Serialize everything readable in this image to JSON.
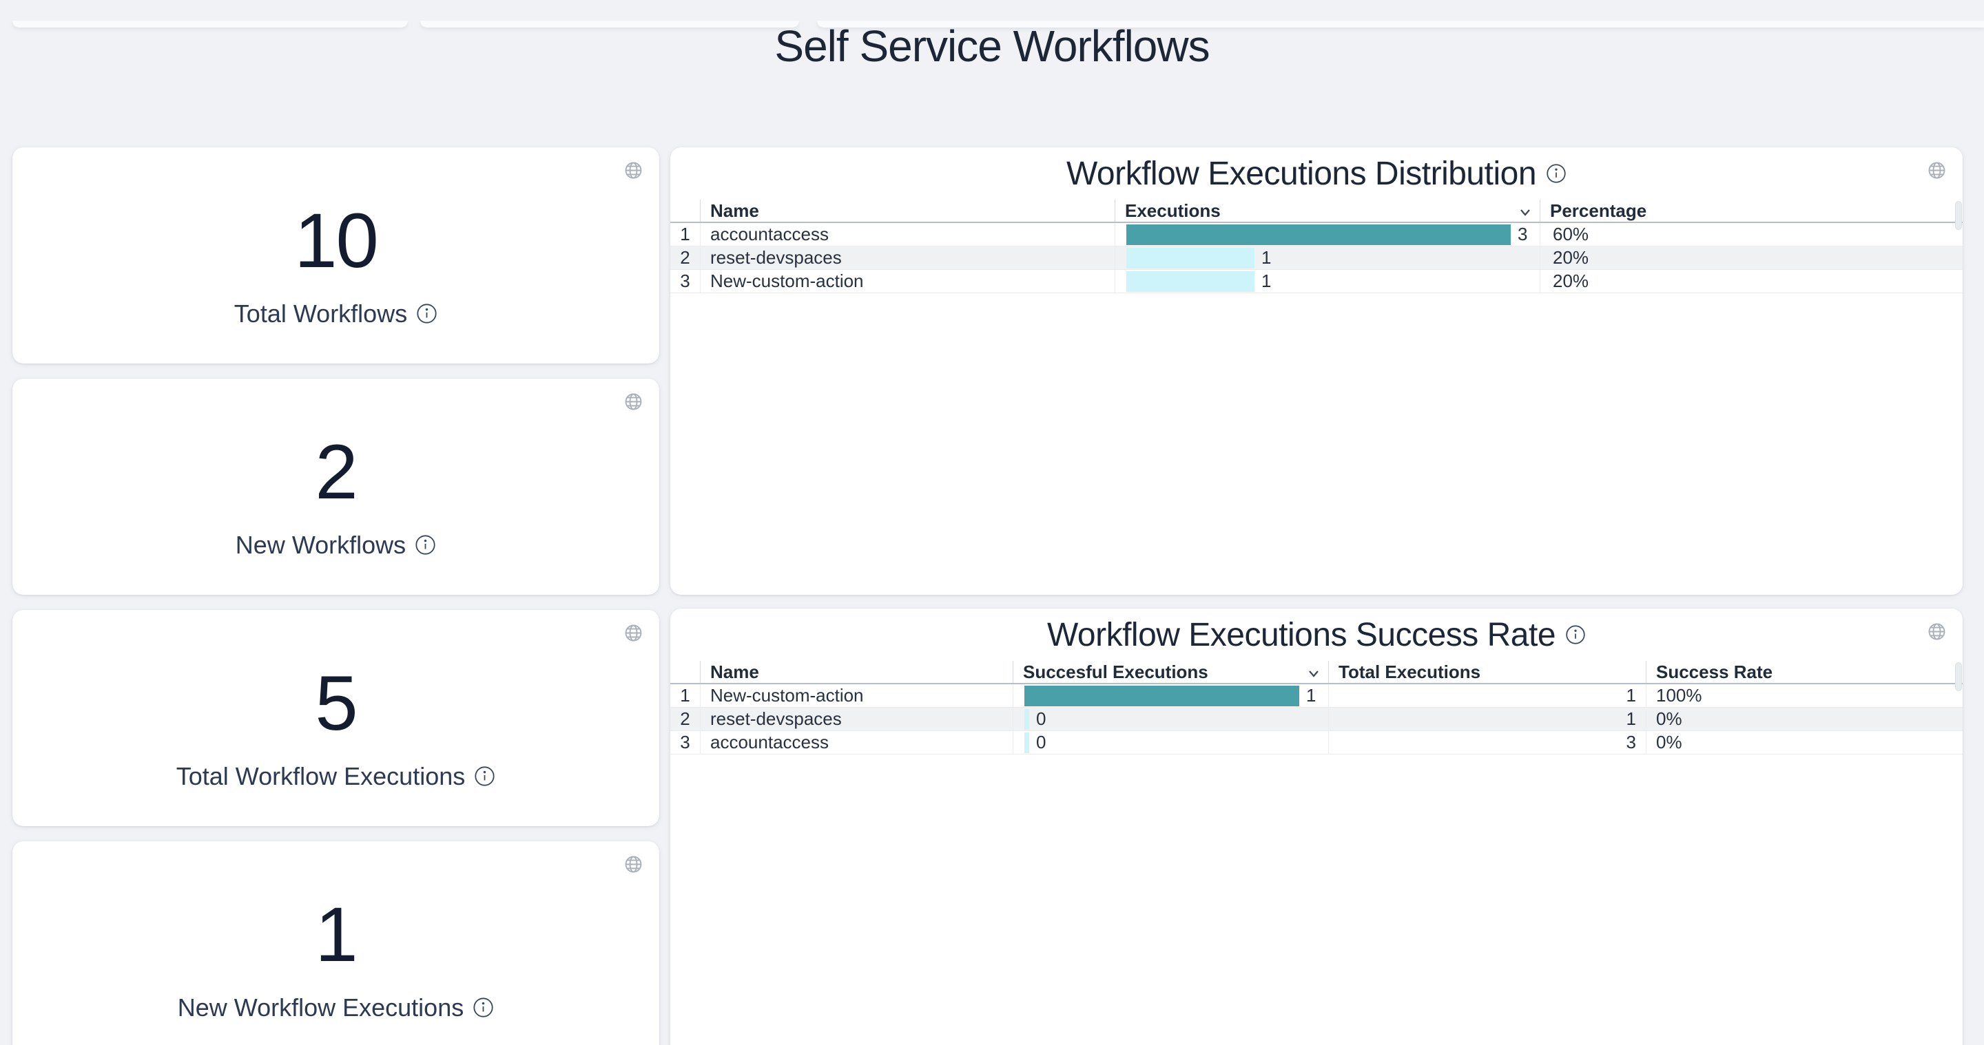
{
  "page": {
    "title": "Self Service Workflows"
  },
  "colors": {
    "background": "#f0f2f6",
    "card": "#ffffff",
    "accent_teal": "#4AA0A9",
    "accent_cyan": "#CDF4FB",
    "alt_row": "#f0f1f2",
    "title_text": "#1d2637"
  },
  "stat_cards": [
    {
      "value": "10",
      "label": "Total Workflows"
    },
    {
      "value": "2",
      "label": "New Workflows"
    },
    {
      "value": "5",
      "label": "Total Workflow Executions"
    },
    {
      "value": "1",
      "label": "New Workflow Executions"
    }
  ],
  "distribution_panel": {
    "title": "Workflow Executions Distribution",
    "columns": {
      "name": "Name",
      "executions": "Executions",
      "percentage": "Percentage"
    },
    "rows": [
      {
        "index": "1",
        "name": "accountaccess",
        "executions": 3,
        "executions_label": "3",
        "bar_color": "#4AA0A9",
        "percentage": "60%"
      },
      {
        "index": "2",
        "name": "reset-devspaces",
        "executions": 1,
        "executions_label": "1",
        "bar_color": "#CDF4FB",
        "percentage": "20%"
      },
      {
        "index": "3",
        "name": "New-custom-action",
        "executions": 1,
        "executions_label": "1",
        "bar_color": "#CDF4FB",
        "percentage": "20%"
      }
    ]
  },
  "success_panel": {
    "title": "Workflow Executions Success Rate",
    "columns": {
      "name": "Name",
      "successful": "Succesful Executions",
      "total": "Total Executions",
      "rate": "Success Rate"
    },
    "rows": [
      {
        "index": "1",
        "name": "New-custom-action",
        "successful": 1,
        "successful_label": "1",
        "bar_color": "#4AA0A9",
        "total": "1",
        "rate": "100%"
      },
      {
        "index": "2",
        "name": "reset-devspaces",
        "successful": 0,
        "successful_label": "0",
        "bar_color": "#CDF4FB",
        "total": "1",
        "rate": "0%"
      },
      {
        "index": "3",
        "name": "accountaccess",
        "successful": 0,
        "successful_label": "0",
        "bar_color": "#CDF4FB",
        "total": "3",
        "rate": "0%"
      }
    ]
  },
  "chart_data": [
    {
      "type": "bar",
      "title": "Workflow Executions Distribution",
      "categories": [
        "accountaccess",
        "reset-devspaces",
        "New-custom-action"
      ],
      "values": [
        3,
        1,
        1
      ],
      "percentages": [
        "60%",
        "20%",
        "20%"
      ],
      "xlabel": "Executions",
      "ylabel": "Name",
      "xlim": [
        0,
        3
      ],
      "orientation": "horizontal",
      "grid": false,
      "legend": "none"
    },
    {
      "type": "bar",
      "title": "Workflow Executions Success Rate",
      "categories": [
        "New-custom-action",
        "reset-devspaces",
        "accountaccess"
      ],
      "series": [
        {
          "name": "Succesful Executions",
          "values": [
            1,
            0,
            0
          ]
        },
        {
          "name": "Total Executions",
          "values": [
            1,
            1,
            3
          ]
        }
      ],
      "success_rates": [
        "100%",
        "0%",
        "0%"
      ],
      "xlim": [
        0,
        1
      ],
      "orientation": "horizontal",
      "grid": false,
      "legend": "none"
    }
  ]
}
